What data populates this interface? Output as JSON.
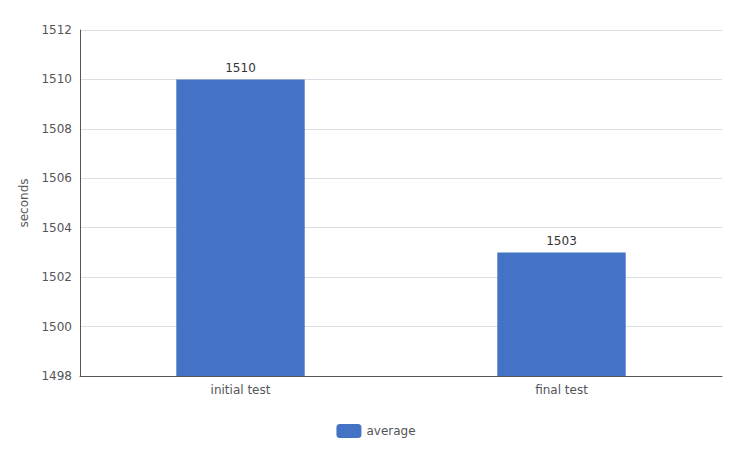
{
  "chart_data": {
    "type": "bar",
    "categories": [
      "initial test",
      "final test"
    ],
    "series": [
      {
        "name": "average",
        "color": "#4472C4",
        "values": [
          1510,
          1503
        ]
      }
    ],
    "ylabel": "seconds",
    "ylim": [
      1498,
      1512
    ],
    "yticks": [
      1498,
      1500,
      1502,
      1504,
      1506,
      1508,
      1510,
      1512
    ],
    "grid": true,
    "legend": "bottom",
    "data_labels": true
  }
}
